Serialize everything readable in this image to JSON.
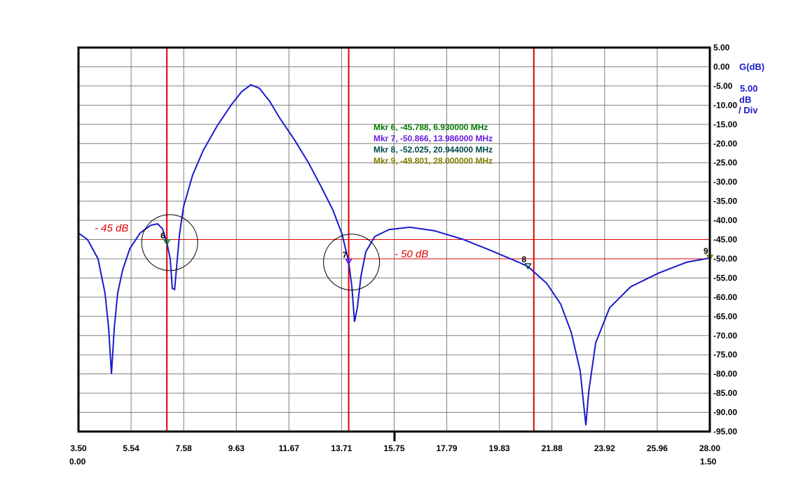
{
  "chart_data": {
    "type": "line",
    "title": "",
    "xlabel": "MHz",
    "ylabel": "G(dB)",
    "y_scale_label": [
      "5.00",
      "dB",
      "/ Div"
    ],
    "xlim": [
      3.5,
      28.0
    ],
    "ylim": [
      -95,
      5
    ],
    "grid": true,
    "x_ticks": [
      "3.50",
      "5.54",
      "7.58",
      "9.63",
      "11.67",
      "13.71",
      "15.75",
      "17.79",
      "19.83",
      "21.88",
      "23.92",
      "25.96",
      "28.00"
    ],
    "x_secondary_ticks": {
      "left": "0.00",
      "right": "1.50"
    },
    "y_ticks": [
      "5.00",
      "0.00",
      "-5.00",
      "-10.00",
      "-15.00",
      "-20.00",
      "-25.00",
      "-30.00",
      "-35.00",
      "-40.00",
      "-45.00",
      "-50.00",
      "-55.00",
      "-60.00",
      "-65.00",
      "-70.00",
      "-75.00",
      "-80.00",
      "-85.00",
      "-90.00",
      "-95.00"
    ],
    "series": [
      {
        "name": "G(dB)",
        "color": "#1a1acc",
        "x": [
          3.5,
          3.85,
          4.26,
          4.53,
          4.67,
          4.78,
          4.89,
          5.02,
          5.21,
          5.49,
          5.89,
          6.3,
          6.57,
          6.76,
          6.93,
          7.06,
          7.14,
          7.23,
          7.31,
          7.42,
          7.58,
          7.93,
          8.34,
          8.88,
          9.43,
          9.83,
          10.19,
          10.52,
          10.92,
          11.33,
          11.88,
          12.42,
          12.96,
          13.37,
          13.73,
          13.986,
          14.11,
          14.21,
          14.32,
          14.46,
          14.65,
          15.0,
          15.55,
          16.36,
          17.31,
          18.4,
          19.49,
          20.58,
          20.944,
          21.67,
          22.21,
          22.62,
          22.97,
          23.19,
          23.3,
          23.57,
          24.11,
          24.93,
          26.02,
          27.1,
          28.0
        ],
        "y": [
          -43.3,
          -45,
          -50,
          -59,
          -68,
          -80,
          -68,
          -59,
          -53,
          -47.4,
          -43.3,
          -41.3,
          -40.9,
          -42.2,
          -45.788,
          -50,
          -57.7,
          -58,
          -52,
          -43.6,
          -36.4,
          -28.2,
          -21.8,
          -15.4,
          -9.9,
          -6.5,
          -4.7,
          -5.6,
          -9,
          -13.6,
          -19,
          -24.9,
          -31.8,
          -37.3,
          -43.6,
          -50.866,
          -57.3,
          -66.4,
          -62.8,
          -54.6,
          -48.2,
          -44.2,
          -42.4,
          -41.8,
          -42.7,
          -44.9,
          -47.8,
          -50.9,
          -52.025,
          -56.4,
          -61.8,
          -69.1,
          -79.2,
          -93.4,
          -84.6,
          -71.9,
          -62.8,
          -57.3,
          -53.7,
          -50.9,
          -49.801
        ]
      }
    ],
    "cursor_lines_x": [
      6.93,
      13.986,
      21.17
    ],
    "reference_lines": [
      {
        "label": "- 45 dB",
        "value": -45,
        "from_x": 6.0
      },
      {
        "label": "- 50 dB",
        "value": -50,
        "from_x": 13.986
      }
    ],
    "markers": [
      {
        "id": "6",
        "y": -45.788,
        "x": 6.93,
        "text": "Mkr 6, -45.788, 6.930000 MHz",
        "color": "#007800",
        "circled": true
      },
      {
        "id": "7",
        "y": -50.866,
        "x": 13.986,
        "text": "Mkr 7, -50.866, 13.986000 MHz",
        "color": "#6a1ae0",
        "circled": true
      },
      {
        "id": "8",
        "y": -52.025,
        "x": 20.944,
        "text": "Mkr 8, -52.025, 20.944000 MHz",
        "color": "#004848",
        "circled": false
      },
      {
        "id": "9",
        "y": -49.801,
        "x": 28.0,
        "text": "Mkr 9, -49.801, 28.000000 MHz",
        "color": "#808000",
        "circled": false
      }
    ]
  }
}
